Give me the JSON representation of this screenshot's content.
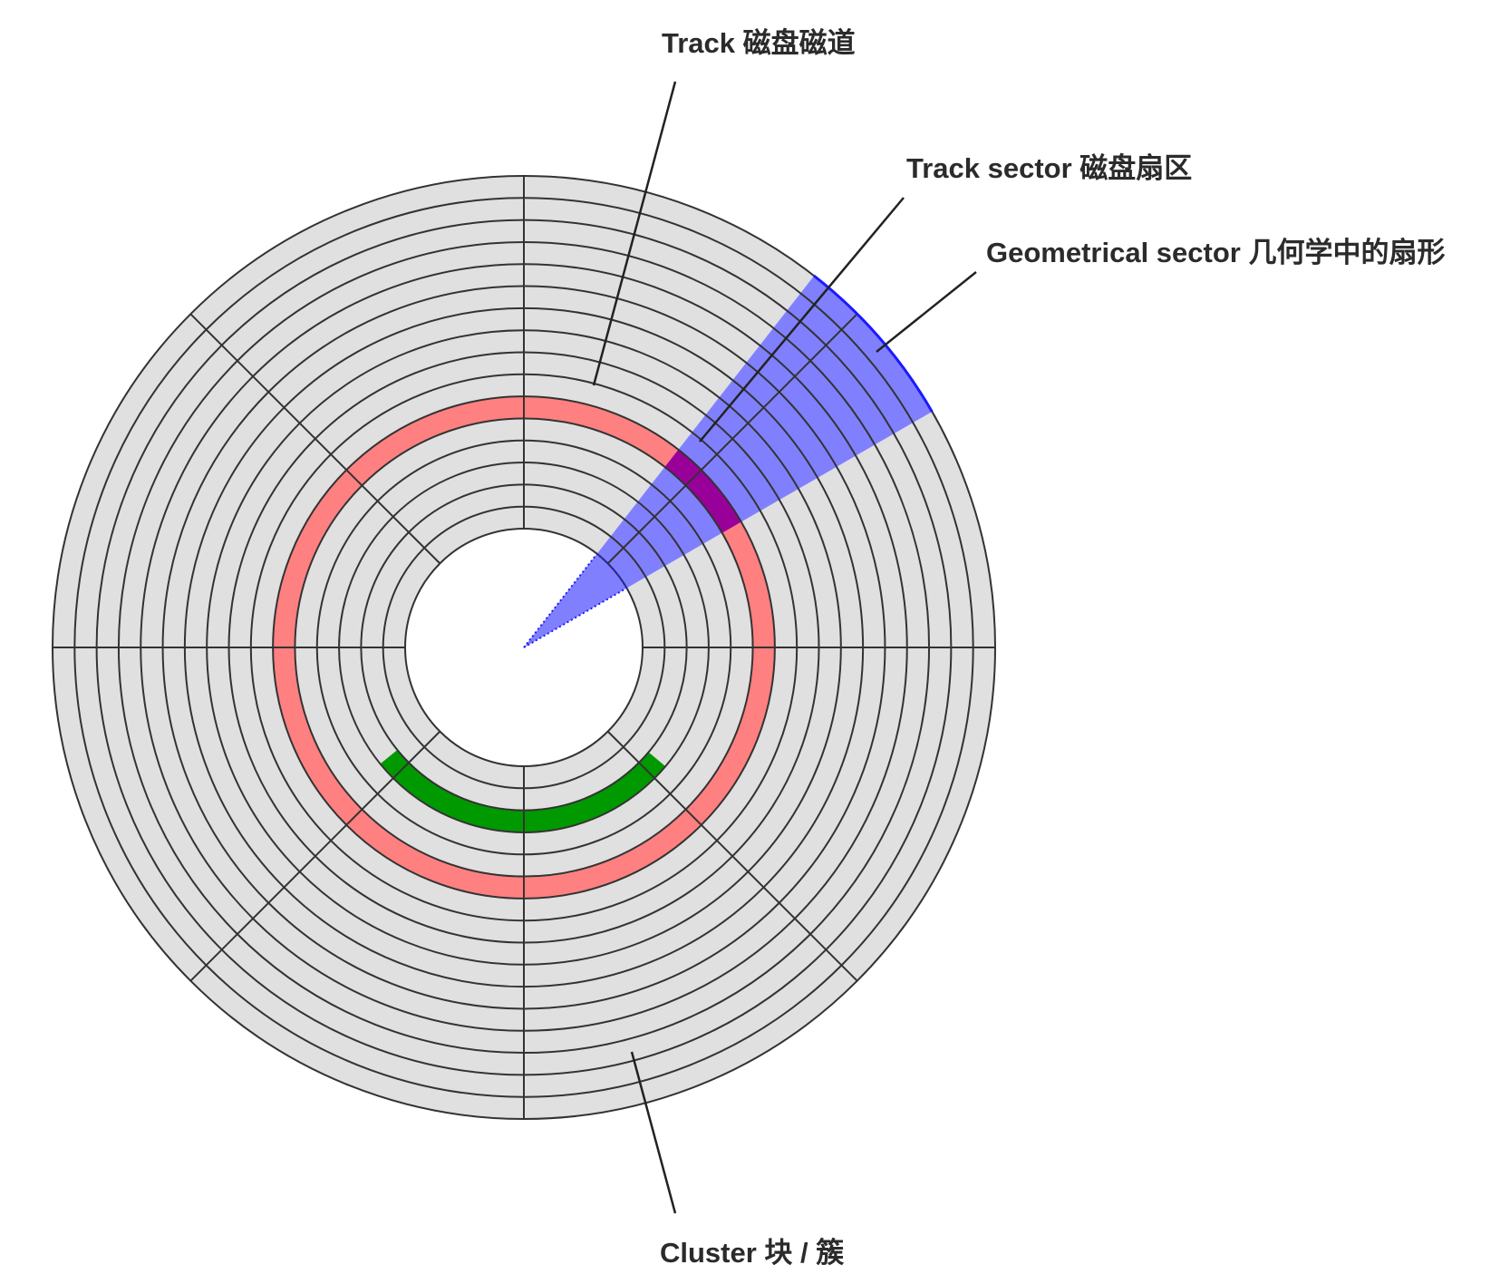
{
  "diagram": {
    "tracks": 16,
    "sectors": 8,
    "colors": {
      "platter_fill": "#e0e0e0",
      "grid_stroke": "#333333",
      "track_highlight": "#ff8080",
      "geometrical_sector": "#8080ff",
      "geometrical_sector_edge": "#1a1aff",
      "track_sector": "#990099",
      "cluster": "#009900",
      "leader_line": "#222222",
      "label_text": "#2b2b2b"
    },
    "highlights": {
      "track_ring": "Track",
      "track_sector": "Track sector",
      "geometrical_sector": "Geometrical sector",
      "cluster": "Cluster"
    }
  },
  "labels": {
    "track": "Track   磁盘磁道",
    "track_sector": "Track sector   磁盘扇区",
    "geometrical_sector": "Geometrical sector  几何学中的扇形",
    "cluster": "Cluster  块 / 簇"
  }
}
